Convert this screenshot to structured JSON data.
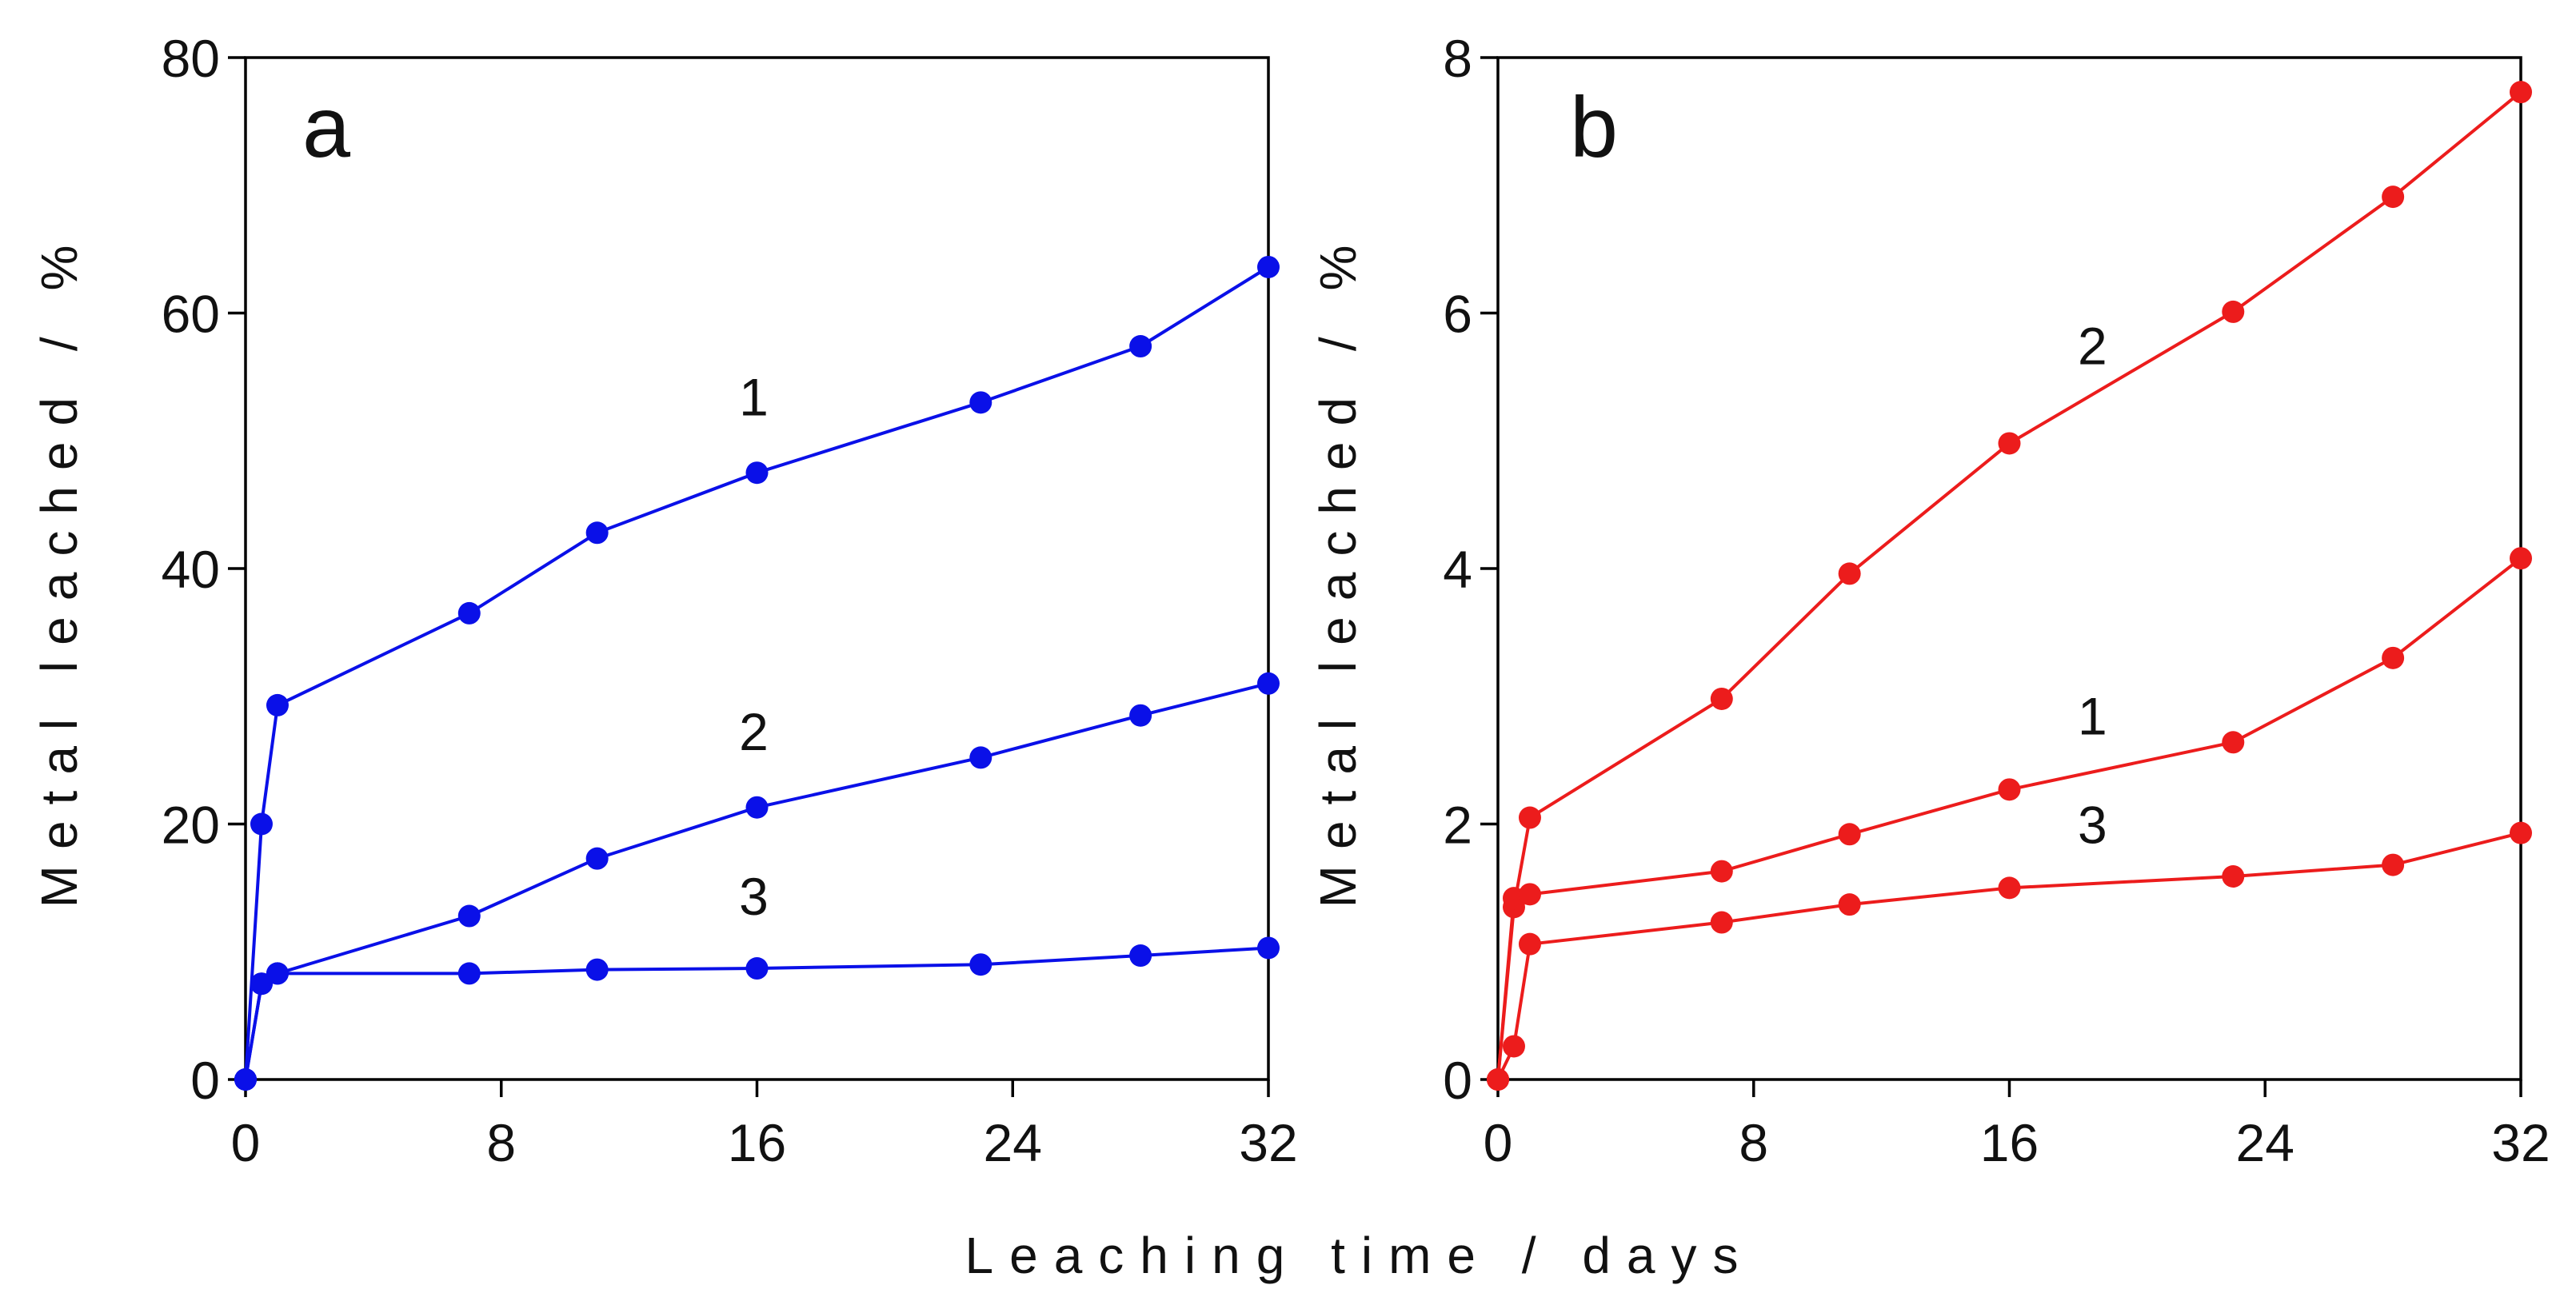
{
  "figure": {
    "shared_xlabel": "Leaching time / days"
  },
  "chart_data": [
    {
      "type": "line",
      "panel": "a",
      "color": "#0a10e8",
      "xlabel": "Leaching time / days",
      "ylabel": "Metal leached / %",
      "xlim": [
        0,
        32
      ],
      "ylim": [
        0,
        80
      ],
      "xticks": [
        0,
        8,
        16,
        24,
        32
      ],
      "yticks": [
        0,
        20,
        40,
        60,
        80
      ],
      "grid": false,
      "series": [
        {
          "name": "1",
          "x": [
            0,
            0.5,
            1,
            7,
            11,
            16,
            23,
            28,
            32
          ],
          "y": [
            0,
            20,
            29.3,
            36.5,
            42.8,
            47.5,
            53,
            57.4,
            63.6
          ],
          "label_at": [
            15.9,
            52
          ]
        },
        {
          "name": "2",
          "x": [
            0,
            0.5,
            1,
            7,
            11,
            16,
            23,
            28,
            32
          ],
          "y": [
            0,
            7.5,
            8.3,
            12.8,
            17.3,
            21.3,
            25.2,
            28.5,
            31
          ],
          "label_at": [
            15.9,
            25.8
          ]
        },
        {
          "name": "3",
          "x": [
            0,
            0.5,
            1,
            7,
            11,
            16,
            23,
            28,
            32
          ],
          "y": [
            0,
            7.5,
            8.3,
            8.3,
            8.6,
            8.7,
            9,
            9.7,
            10.3
          ],
          "label_at": [
            15.9,
            12.9
          ]
        }
      ]
    },
    {
      "type": "line",
      "panel": "b",
      "color": "#ec1c1c",
      "xlabel": "",
      "ylabel": "Metal leached / %",
      "xlim": [
        0,
        32
      ],
      "ylim": [
        0,
        8
      ],
      "xticks": [
        0,
        8,
        16,
        24,
        32
      ],
      "yticks": [
        0,
        2,
        4,
        6,
        8
      ],
      "grid": false,
      "series": [
        {
          "name": "2",
          "x": [
            0,
            0.5,
            1,
            7,
            11,
            16,
            23,
            28,
            32
          ],
          "y": [
            0,
            1.35,
            2.05,
            2.98,
            3.96,
            4.98,
            6.01,
            6.91,
            7.73
          ],
          "label_at": [
            18.6,
            5.6
          ]
        },
        {
          "name": "1",
          "x": [
            0,
            0.5,
            1,
            7,
            11,
            16,
            23,
            28,
            32
          ],
          "y": [
            0,
            1.42,
            1.45,
            1.63,
            1.92,
            2.27,
            2.64,
            3.3,
            4.08
          ],
          "label_at": [
            18.6,
            2.7
          ]
        },
        {
          "name": "3",
          "x": [
            0,
            0.5,
            1,
            7,
            11,
            16,
            23,
            28,
            32
          ],
          "y": [
            0,
            0.26,
            1.06,
            1.23,
            1.37,
            1.5,
            1.59,
            1.68,
            1.93
          ],
          "label_at": [
            18.6,
            1.85
          ]
        }
      ]
    }
  ]
}
